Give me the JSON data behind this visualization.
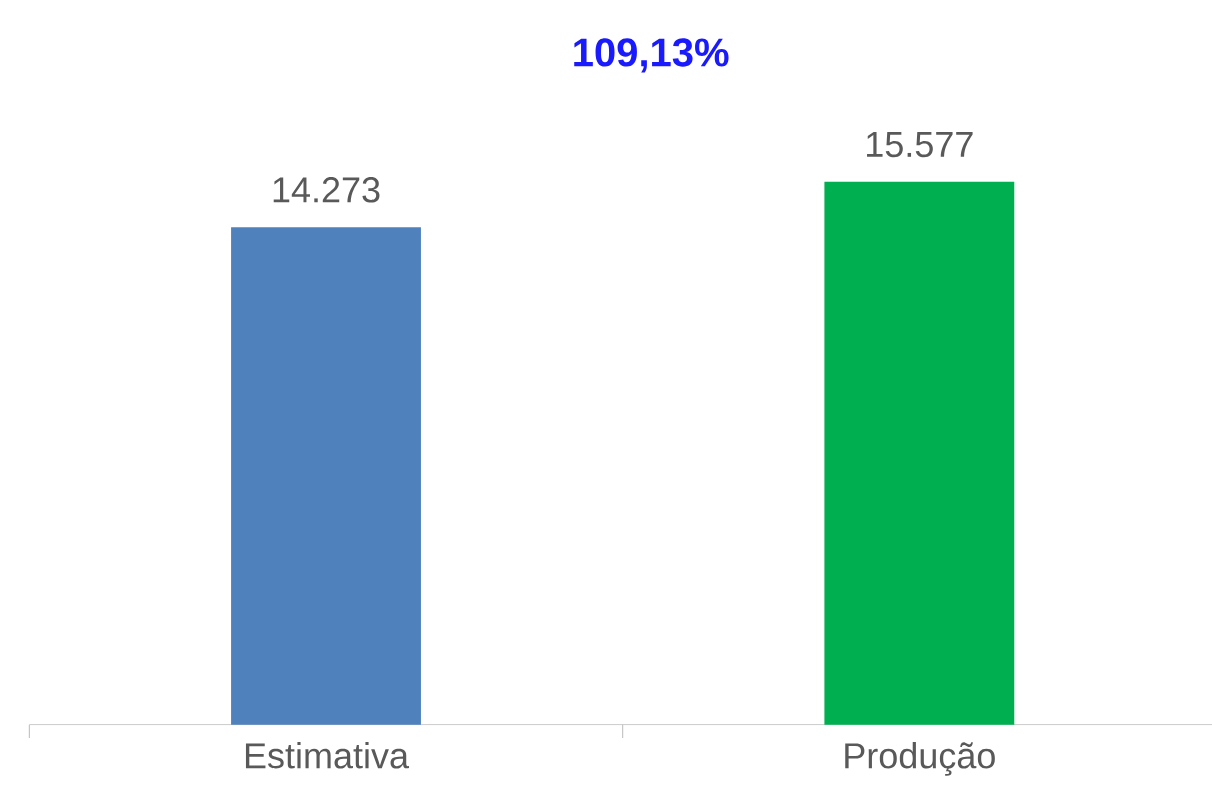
{
  "chart_data": {
    "type": "bar",
    "title": "109,13%",
    "categories": [
      "Estimativa",
      "Produção"
    ],
    "values": [
      14273,
      15577
    ],
    "colors": [
      "#4f81bd",
      "#00b050"
    ],
    "value_labels": [
      "14.273",
      "15.577"
    ]
  }
}
